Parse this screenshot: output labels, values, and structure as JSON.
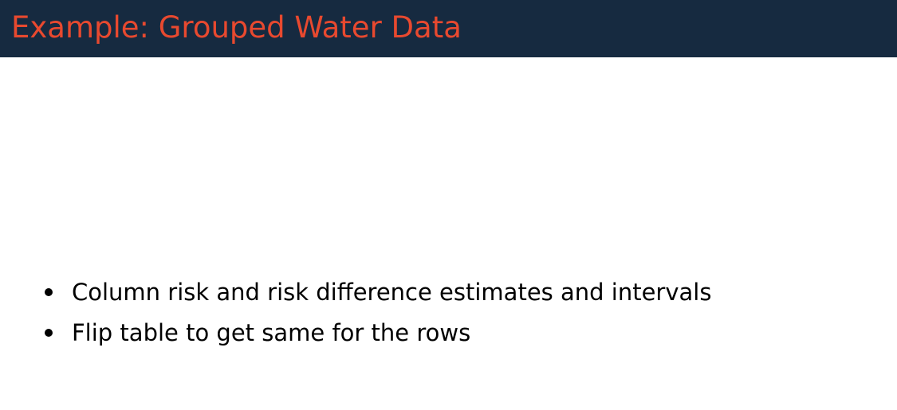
{
  "slide": {
    "title": "Example: Grouped Water Data",
    "bullets": [
      "Column risk and risk difference estimates and intervals",
      "Flip table to get same for the rows"
    ]
  },
  "colors": {
    "title_bar": "#162a40",
    "title_text": "#e8492f",
    "body_text": "#000000"
  }
}
